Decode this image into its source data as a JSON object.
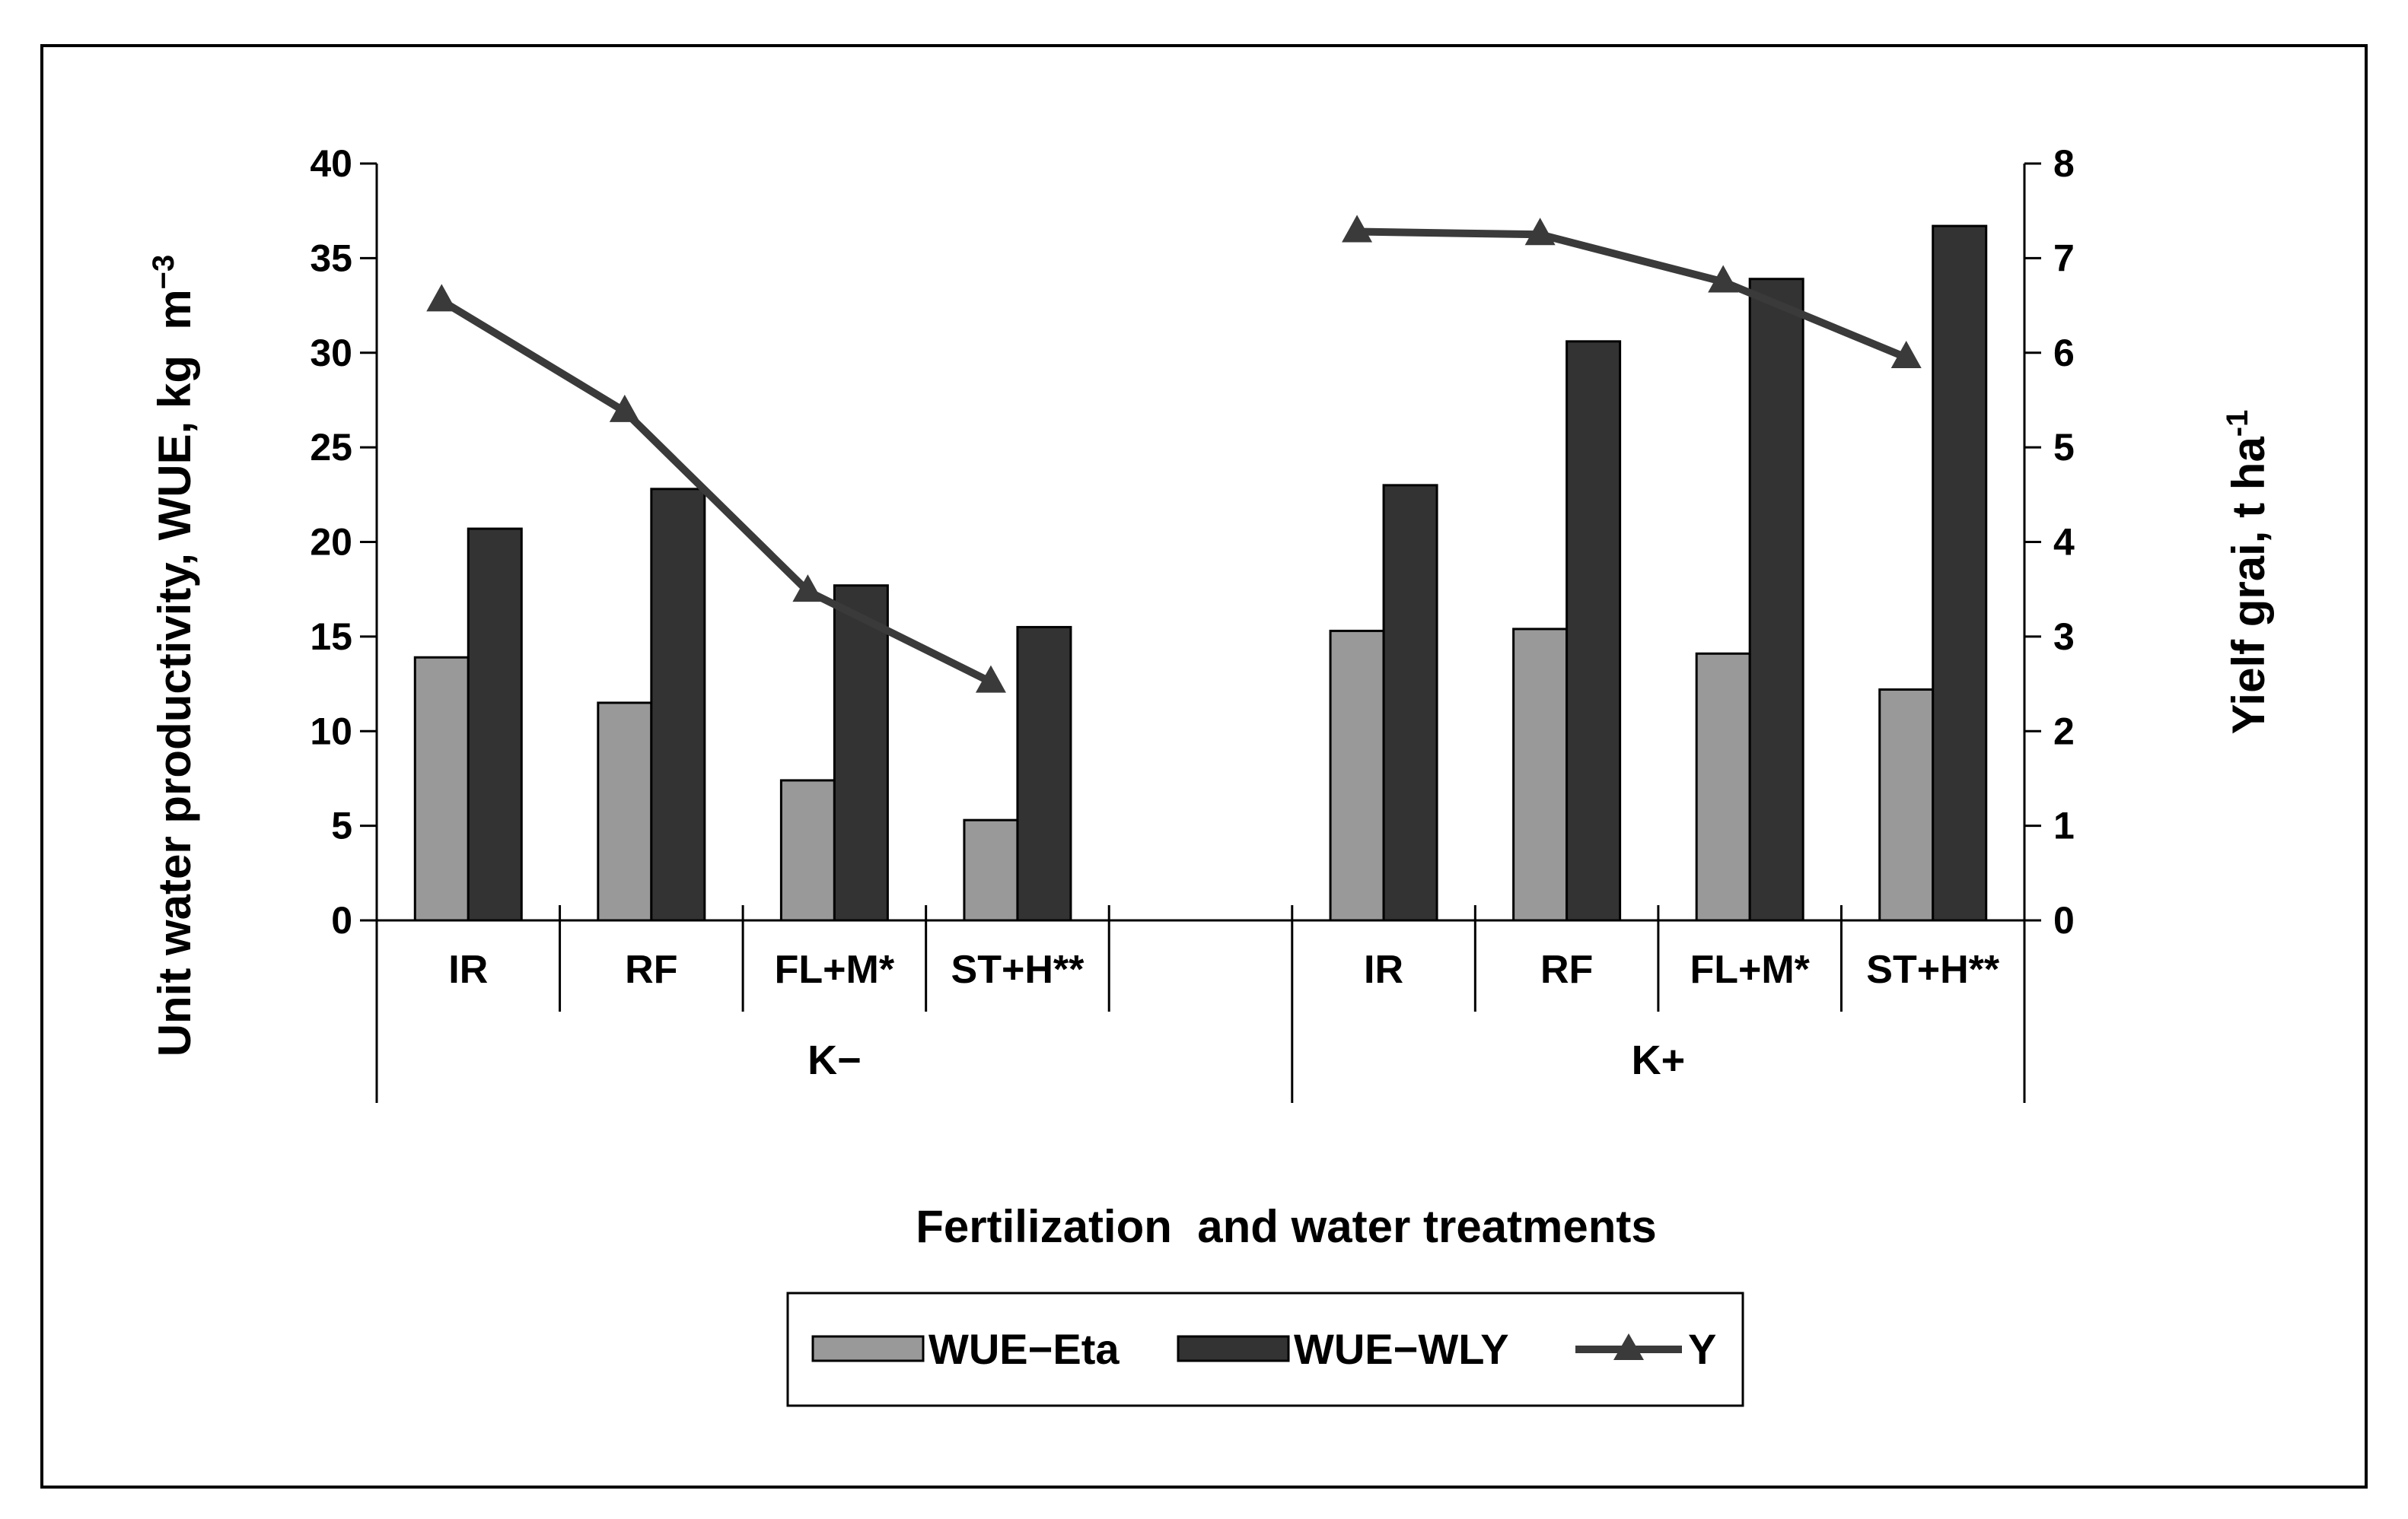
{
  "chart_data": {
    "type": "bar",
    "title": "",
    "xlabel": "Fertilization  and water treatments",
    "ylabel": "Unit water productivity, WUE, kg  m",
    "ylabel_superscript": "−3",
    "y2label": "Yielf grai, t ha",
    "y2label_superscript": "-1",
    "ylim": [
      0,
      40
    ],
    "y2lim": [
      0,
      8
    ],
    "yticks": [
      "0",
      "5",
      "10",
      "15",
      "20",
      "25",
      "30",
      "35",
      "40"
    ],
    "y2ticks": [
      "0",
      "1",
      "2",
      "3",
      "4",
      "5",
      "6",
      "7",
      "8"
    ],
    "groups": [
      {
        "label": "K−",
        "categories": [
          "IR",
          "RF",
          "FL+M*",
          "ST+H**"
        ]
      },
      {
        "label": "K+",
        "categories": [
          "IR",
          "RF",
          "FL+M*",
          "ST+H**"
        ]
      }
    ],
    "series": [
      {
        "name": "WUE−Eta",
        "type": "bar",
        "axis": "left",
        "color": "#999999",
        "values": [
          13.9,
          11.5,
          7.4,
          5.3,
          15.3,
          15.4,
          14.1,
          12.2
        ]
      },
      {
        "name": "WUE−WLY",
        "type": "bar",
        "axis": "left",
        "color": "#333333",
        "values": [
          20.7,
          22.8,
          17.7,
          15.5,
          23.0,
          30.6,
          33.9,
          36.7
        ]
      },
      {
        "name": "Y",
        "type": "line",
        "axis": "right",
        "color": "#3a3a3a",
        "marker": "triangle",
        "values": [
          6.55,
          5.38,
          3.48,
          2.52,
          7.28,
          7.25,
          6.75,
          5.95
        ]
      }
    ],
    "legend": "bottom-center"
  }
}
